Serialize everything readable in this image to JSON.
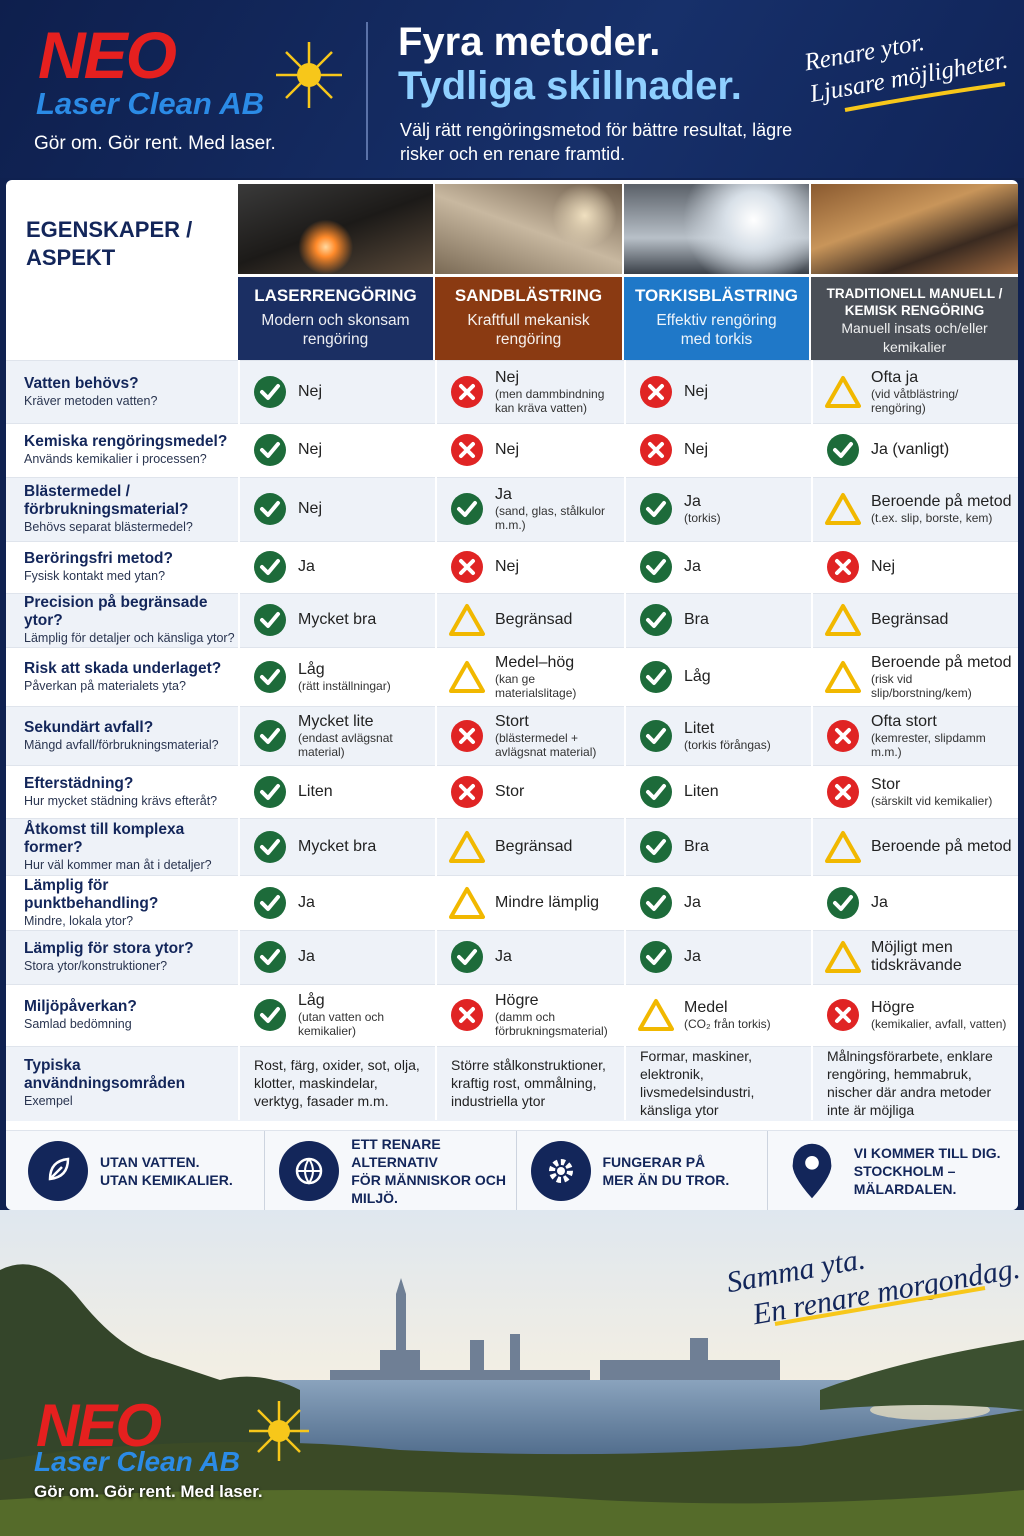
{
  "header": {
    "brand": "NEO",
    "brand_sub": "Laser Clean AB",
    "tagline": "Gör om. Gör rent. Med laser.",
    "title_line1": "Fyra metoder.",
    "title_line2": "Tydliga skillnader.",
    "intro": "Välj rätt rengöringsmetod för bättre resultat, lägre risker och en renare framtid.",
    "script_note": [
      "Renare ytor.",
      "Ljusare möjligheter."
    ]
  },
  "table": {
    "corner": "EGENSKAPER / ASPEKT",
    "columns": [
      {
        "title": "LASERRENGÖRING",
        "subtitle": "Modern och skonsam rengöring",
        "color": "#1b2f63"
      },
      {
        "title": "SANDBLÄSTRING",
        "subtitle": "Kraftfull mekanisk rengöring",
        "color": "#8a3a12"
      },
      {
        "title": "TORKISBLÄSTRING",
        "subtitle": "Effektiv rengöring med torkis",
        "color": "#1f78c8"
      },
      {
        "title": "TRADITIONELL MANUELL / KEMISK RENGÖRING",
        "subtitle": "Manuell insats och/eller kemikalier",
        "color": "#4a4f57"
      }
    ],
    "rows": [
      {
        "label": "Vatten behövs?",
        "sublabel": "Kräver metoden vatten?",
        "cells": [
          {
            "status": "yes",
            "text": "Nej"
          },
          {
            "status": "no",
            "text": "Nej",
            "note": "(men dammbindning kan kräva vatten)"
          },
          {
            "status": "no",
            "text": "Nej"
          },
          {
            "status": "warn",
            "text": "Ofta ja",
            "note": "(vid våtblästring/ rengöring)"
          }
        ]
      },
      {
        "label": "Kemiska rengöringsmedel?",
        "sublabel": "Används kemikalier i processen?",
        "cells": [
          {
            "status": "yes",
            "text": "Nej"
          },
          {
            "status": "no",
            "text": "Nej"
          },
          {
            "status": "no",
            "text": "Nej"
          },
          {
            "status": "yes",
            "text": "Ja (vanligt)"
          }
        ]
      },
      {
        "label": "Blästermedel / förbrukningsmaterial?",
        "sublabel": "Behövs separat blästermedel?",
        "cells": [
          {
            "status": "yes",
            "text": "Nej"
          },
          {
            "status": "yes",
            "text": "Ja",
            "note": "(sand, glas, stålkulor m.m.)"
          },
          {
            "status": "yes",
            "text": "Ja",
            "note": "(torkis)"
          },
          {
            "status": "warn",
            "text": "Beroende på metod",
            "note": "(t.ex. slip, borste, kem)"
          }
        ]
      },
      {
        "label": "Beröringsfri metod?",
        "sublabel": "Fysisk kontakt med ytan?",
        "cells": [
          {
            "status": "yes",
            "text": "Ja"
          },
          {
            "status": "no",
            "text": "Nej"
          },
          {
            "status": "yes",
            "text": "Ja"
          },
          {
            "status": "no",
            "text": "Nej"
          }
        ]
      },
      {
        "label": "Precision på begränsade ytor?",
        "sublabel": "Lämplig för detaljer och känsliga ytor?",
        "cells": [
          {
            "status": "yes",
            "text": "Mycket bra"
          },
          {
            "status": "warn",
            "text": "Begränsad"
          },
          {
            "status": "yes",
            "text": "Bra"
          },
          {
            "status": "warn",
            "text": "Begränsad"
          }
        ]
      },
      {
        "label": "Risk att skada underlaget?",
        "sublabel": "Påverkan på materialets yta?",
        "cells": [
          {
            "status": "yes",
            "text": "Låg",
            "note": "(rätt inställningar)"
          },
          {
            "status": "warn",
            "text": "Medel–hög",
            "note": "(kan ge materialslitage)"
          },
          {
            "status": "yes",
            "text": "Låg"
          },
          {
            "status": "warn",
            "text": "Beroende på metod",
            "note": "(risk vid slip/borstning/kem)"
          }
        ]
      },
      {
        "label": "Sekundärt avfall?",
        "sublabel": "Mängd avfall/förbrukningsmaterial?",
        "cells": [
          {
            "status": "yes",
            "text": "Mycket lite",
            "note": "(endast avlägsnat material)"
          },
          {
            "status": "no",
            "text": "Stort",
            "note": "(blästermedel + avlägsnat material)"
          },
          {
            "status": "yes",
            "text": "Litet",
            "note": "(torkis förångas)"
          },
          {
            "status": "no",
            "text": "Ofta stort",
            "note": "(kemrester, slipdamm m.m.)"
          }
        ]
      },
      {
        "label": "Efterstädning?",
        "sublabel": "Hur mycket städning krävs efteråt?",
        "cells": [
          {
            "status": "yes",
            "text": "Liten"
          },
          {
            "status": "no",
            "text": "Stor"
          },
          {
            "status": "yes",
            "text": "Liten"
          },
          {
            "status": "no",
            "text": "Stor",
            "note": "(särskilt vid kemikalier)"
          }
        ]
      },
      {
        "label": "Åtkomst till komplexa former?",
        "sublabel": "Hur väl kommer man åt i detaljer?",
        "cells": [
          {
            "status": "yes",
            "text": "Mycket bra"
          },
          {
            "status": "warn",
            "text": "Begränsad"
          },
          {
            "status": "yes",
            "text": "Bra"
          },
          {
            "status": "warn",
            "text": "Beroende på metod"
          }
        ]
      },
      {
        "label": "Lämplig för punktbehandling?",
        "sublabel": "Mindre, lokala ytor?",
        "cells": [
          {
            "status": "yes",
            "text": "Ja"
          },
          {
            "status": "warn",
            "text": "Mindre lämplig"
          },
          {
            "status": "yes",
            "text": "Ja"
          },
          {
            "status": "yes",
            "text": "Ja"
          }
        ]
      },
      {
        "label": "Lämplig för stora ytor?",
        "sublabel": "Stora ytor/konstruktioner?",
        "cells": [
          {
            "status": "yes",
            "text": "Ja"
          },
          {
            "status": "yes",
            "text": "Ja"
          },
          {
            "status": "yes",
            "text": "Ja"
          },
          {
            "status": "warn",
            "text": "Möjligt men tidskrävande"
          }
        ]
      },
      {
        "label": "Miljöpåverkan?",
        "sublabel": "Samlad bedömning",
        "cells": [
          {
            "status": "yes",
            "text": "Låg",
            "note": "(utan vatten och kemikalier)"
          },
          {
            "status": "no",
            "text": "Högre",
            "note": "(damm och förbrukningsmaterial)"
          },
          {
            "status": "warn",
            "text": "Medel",
            "note": "(CO₂ från torkis)"
          },
          {
            "status": "no",
            "text": "Högre",
            "note": "(kemikalier, avfall, vatten)"
          }
        ]
      },
      {
        "label": "Typiska användningsområden",
        "sublabel": "Exempel",
        "cells": [
          {
            "text": "Rost, färg, oxider, sot, olja, klotter, maskindelar, verktyg, fasader m.m."
          },
          {
            "text": "Större stålkonstruktioner, kraftig rost, ommålning, industriella ytor"
          },
          {
            "text": "Formar, maskiner, elektronik, livsmedelsindustri, känsliga ytor"
          },
          {
            "text": "Målningsförarbete, enklare rengöring, hemmabruk, nischer där andra metoder inte är möjliga"
          }
        ]
      }
    ]
  },
  "features": [
    {
      "lines": [
        "UTAN VATTEN.",
        "UTAN KEMIKALIER."
      ]
    },
    {
      "lines": [
        "ETT RENARE ALTERNATIV",
        "FÖR MÄNNISKOR OCH MILJÖ."
      ]
    },
    {
      "lines": [
        "FUNGERAR PÅ",
        "MER ÄN DU TROR."
      ]
    },
    {
      "lines": [
        "VI KOMMER TILL DIG.",
        "STOCKHOLM – MÄLARDALEN."
      ]
    }
  ],
  "slogan": [
    "Samma yta.",
    "En renare morgondag."
  ]
}
